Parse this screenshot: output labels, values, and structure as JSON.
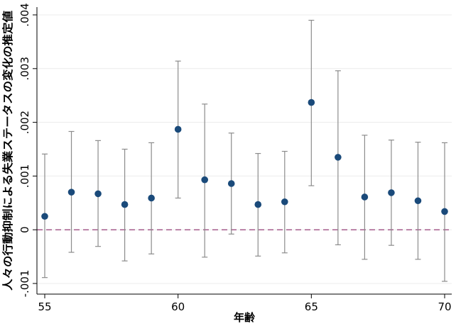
{
  "chart_data": {
    "type": "scatter",
    "title": "",
    "xlabel": "年齢",
    "ylabel": "人々の行動抑制による失業ステータスの変化の推定値",
    "x_ticks": [
      55,
      60,
      65,
      70
    ],
    "x_tick_labels": [
      "55",
      "60",
      "65",
      "70"
    ],
    "y_ticks": [
      -0.001,
      0,
      0.001,
      0.002,
      0.003,
      0.004
    ],
    "y_tick_labels": [
      "-.001",
      "0",
      ".001",
      ".002",
      ".003",
      ".004"
    ],
    "xlim": [
      55,
      70
    ],
    "ylim": [
      -0.001,
      0.004
    ],
    "grid": true,
    "reference_line_y": 0,
    "point_color": "#1a4a7a",
    "errorbar_color": "#8c8c8c",
    "refline_color": "#8b2a6a",
    "points": [
      {
        "x": 55,
        "y": 0.00025,
        "lower": -0.00089,
        "upper": 0.00141
      },
      {
        "x": 56,
        "y": 0.0007,
        "lower": -0.00042,
        "upper": 0.00183
      },
      {
        "x": 57,
        "y": 0.00067,
        "lower": -0.00031,
        "upper": 0.00166
      },
      {
        "x": 58,
        "y": 0.00047,
        "lower": -0.00058,
        "upper": 0.0015
      },
      {
        "x": 59,
        "y": 0.00059,
        "lower": -0.00045,
        "upper": 0.00162
      },
      {
        "x": 60,
        "y": 0.00187,
        "lower": 0.00059,
        "upper": 0.00314
      },
      {
        "x": 61,
        "y": 0.00093,
        "lower": -0.00051,
        "upper": 0.00234
      },
      {
        "x": 62,
        "y": 0.00086,
        "lower": -8e-05,
        "upper": 0.0018
      },
      {
        "x": 63,
        "y": 0.00047,
        "lower": -0.00049,
        "upper": 0.00142
      },
      {
        "x": 64,
        "y": 0.00052,
        "lower": -0.00043,
        "upper": 0.00146
      },
      {
        "x": 65,
        "y": 0.00237,
        "lower": 0.00082,
        "upper": 0.0039
      },
      {
        "x": 66,
        "y": 0.00135,
        "lower": -0.00028,
        "upper": 0.00296
      },
      {
        "x": 67,
        "y": 0.00061,
        "lower": -0.00055,
        "upper": 0.00176
      },
      {
        "x": 68,
        "y": 0.00069,
        "lower": -0.00029,
        "upper": 0.00167
      },
      {
        "x": 69,
        "y": 0.00054,
        "lower": -0.00055,
        "upper": 0.00163
      },
      {
        "x": 70,
        "y": 0.00034,
        "lower": -0.00096,
        "upper": 0.00162
      }
    ]
  }
}
